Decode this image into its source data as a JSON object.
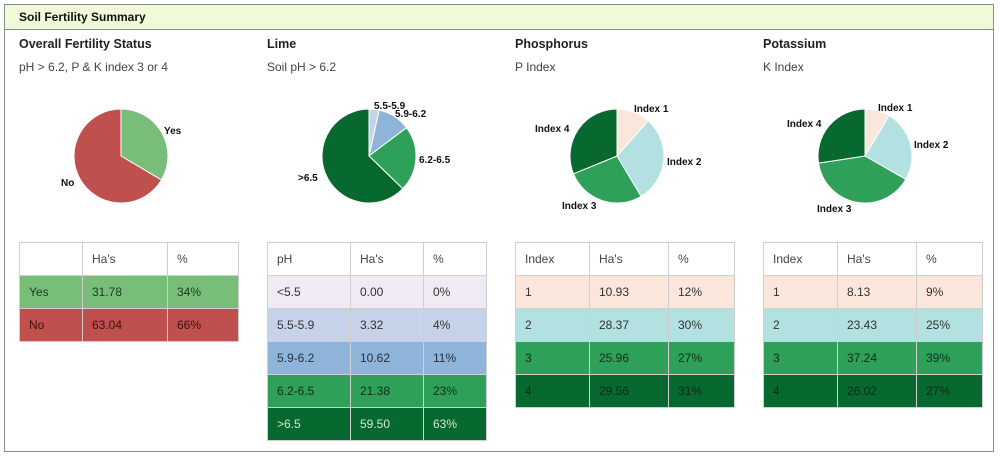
{
  "header": {
    "title": "Soil Fertility Summary"
  },
  "panels": [
    {
      "title": "Overall Fertility Status",
      "subtitle": "pH > 6.2, P & K index 3 or 4",
      "columns": [
        "",
        "Ha's",
        "%"
      ],
      "rows": [
        {
          "label": "Yes",
          "has": "31.78",
          "pct": "34%",
          "value": 31.78,
          "color": "#78be78",
          "text_color": "#1f3a1f"
        },
        {
          "label": "No",
          "has": "63.04",
          "pct": "66%",
          "value": 63.04,
          "color": "#c0504d",
          "text_color": "#3a1010"
        }
      ],
      "pie_labels": [
        "Yes",
        "No"
      ]
    },
    {
      "title": "Lime",
      "subtitle": "Soil pH > 6.2",
      "columns": [
        "pH",
        "Ha's",
        "%"
      ],
      "rows": [
        {
          "label": "<5.5",
          "has": "0.00",
          "pct": "0%",
          "value": 0.0,
          "color": "#f0eaf5",
          "text_color": "#333333"
        },
        {
          "label": "5.5-5.9",
          "has": "3.32",
          "pct": "4%",
          "value": 3.32,
          "color": "#c5d2e8",
          "text_color": "#333333"
        },
        {
          "label": "5.9-6.2",
          "has": "10.62",
          "pct": "11%",
          "value": 10.62,
          "color": "#8fb4d9",
          "text_color": "#223344"
        },
        {
          "label": "6.2-6.5",
          "has": "21.38",
          "pct": "23%",
          "value": 21.38,
          "color": "#2ea05a",
          "text_color": "#0f2e18"
        },
        {
          "label": ">6.5",
          "has": "59.50",
          "pct": "63%",
          "value": 59.5,
          "color": "#07692f",
          "text_color": "#d0e8d0"
        }
      ],
      "pie_labels": [
        "5.5-5.9",
        "5.9-6.2",
        "6.2-6.5",
        ">6.5"
      ]
    },
    {
      "title": "Phosphorus",
      "subtitle": "P Index",
      "columns": [
        "Index",
        "Ha's",
        "%"
      ],
      "rows": [
        {
          "label": "1",
          "has": "10.93",
          "pct": "12%",
          "value": 10.93,
          "color": "#fbe6db",
          "text_color": "#333333"
        },
        {
          "label": "2",
          "has": "28.37",
          "pct": "30%",
          "value": 28.37,
          "color": "#b3e0e0",
          "text_color": "#333333"
        },
        {
          "label": "3",
          "has": "25.96",
          "pct": "27%",
          "value": 25.96,
          "color": "#2ea05a",
          "text_color": "#0f2e18"
        },
        {
          "label": "4",
          "has": "29.56",
          "pct": "31%",
          "value": 29.56,
          "color": "#07692f",
          "text_color": "#0a2a14"
        }
      ],
      "pie_labels": [
        "Index 1",
        "Index 2",
        "Index 3",
        "Index 4"
      ]
    },
    {
      "title": "Potassium",
      "subtitle": "K Index",
      "columns": [
        "Index",
        "Ha's",
        "%"
      ],
      "rows": [
        {
          "label": "1",
          "has": "8.13",
          "pct": "9%",
          "value": 8.13,
          "color": "#fbe6db",
          "text_color": "#333333"
        },
        {
          "label": "2",
          "has": "23.43",
          "pct": "25%",
          "value": 23.43,
          "color": "#b3e0e0",
          "text_color": "#333333"
        },
        {
          "label": "3",
          "has": "37.24",
          "pct": "39%",
          "value": 37.24,
          "color": "#2ea05a",
          "text_color": "#0f2e18"
        },
        {
          "label": "4",
          "has": "26.02",
          "pct": "27%",
          "value": 26.02,
          "color": "#07692f",
          "text_color": "#0a2a14"
        }
      ],
      "pie_labels": [
        "Index 1",
        "Index 2",
        "Index 3",
        "Index 4"
      ]
    }
  ],
  "chart_data": [
    {
      "type": "pie",
      "title": "Overall Fertility Status",
      "labels": [
        "Yes",
        "No"
      ],
      "values": [
        31.78,
        63.04
      ]
    },
    {
      "type": "pie",
      "title": "Lime",
      "labels": [
        "<5.5",
        "5.5-5.9",
        "5.9-6.2",
        "6.2-6.5",
        ">6.5"
      ],
      "values": [
        0.0,
        3.32,
        10.62,
        21.38,
        59.5
      ]
    },
    {
      "type": "pie",
      "title": "Phosphorus",
      "labels": [
        "Index 1",
        "Index 2",
        "Index 3",
        "Index 4"
      ],
      "values": [
        10.93,
        28.37,
        25.96,
        29.56
      ]
    },
    {
      "type": "pie",
      "title": "Potassium",
      "labels": [
        "Index 1",
        "Index 2",
        "Index 3",
        "Index 4"
      ],
      "values": [
        8.13,
        23.43,
        37.24,
        26.02
      ]
    }
  ]
}
